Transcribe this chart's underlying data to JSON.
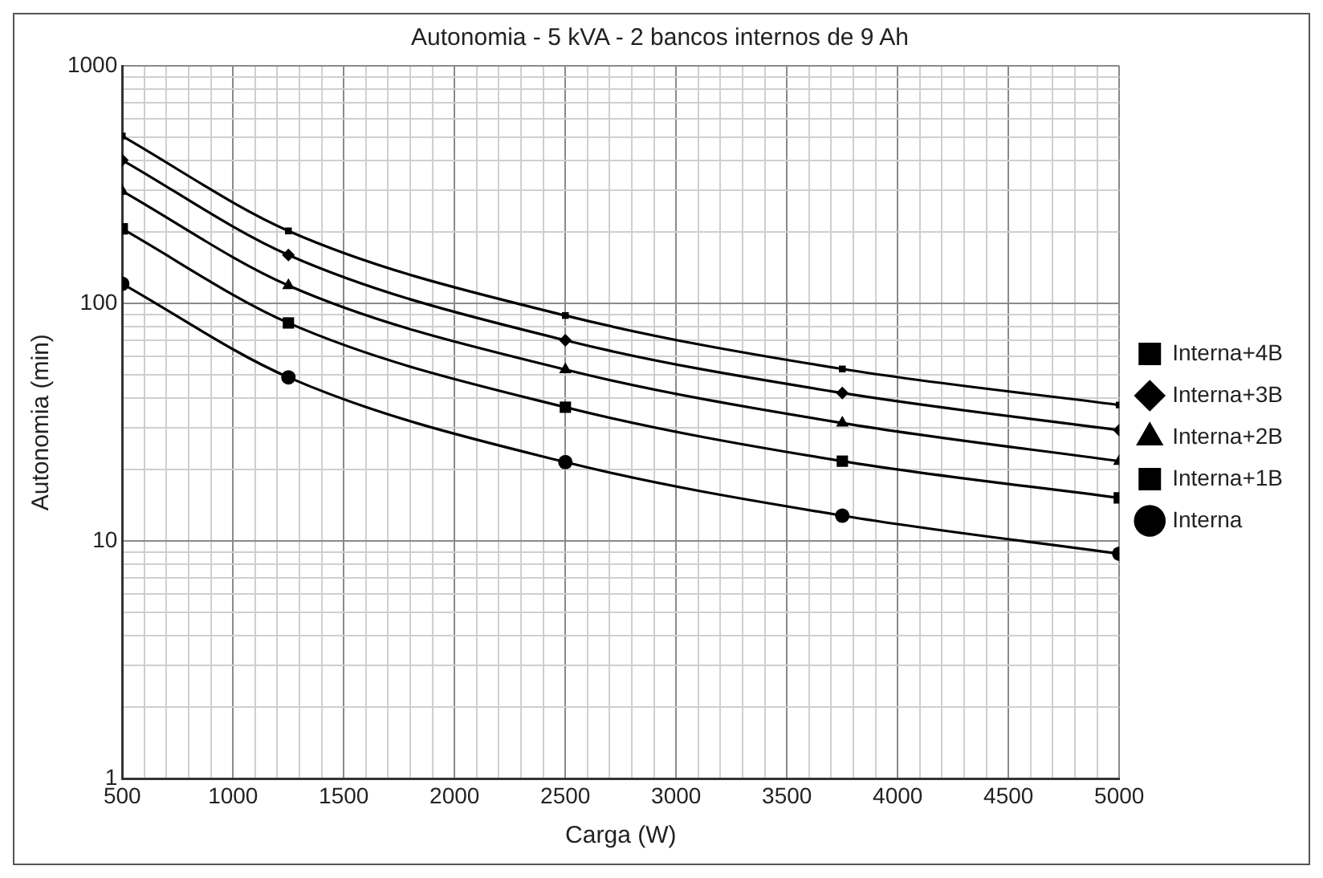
{
  "chart_data": {
    "type": "line",
    "title": "Autonomia - 5 kVA - 2 bancos internos de 9 Ah",
    "xlabel": "Carga (W)",
    "ylabel": "Autonomia (min)",
    "x": [
      500,
      1250,
      2500,
      3750,
      5000
    ],
    "series": [
      {
        "name": "Interna+4B",
        "color": "#000000",
        "marker": "square",
        "values": [
          506,
          202,
          89,
          53,
          37.4
        ]
      },
      {
        "name": "Interna+3B",
        "color": "#000000",
        "marker": "diamond",
        "values": [
          401,
          160,
          70,
          42,
          29.3
        ]
      },
      {
        "name": "Interna+2B",
        "color": "#000000",
        "marker": "triangle",
        "values": [
          297,
          119,
          52.7,
          31.4,
          21.7
        ]
      },
      {
        "name": "Interna+1B",
        "color": "#000000",
        "marker": "square",
        "values": [
          206,
          82.8,
          36.6,
          21.7,
          15.2
        ]
      },
      {
        "name": "Interna",
        "color": "#000000",
        "marker": "circle",
        "values": [
          121,
          48.9,
          21.5,
          12.8,
          8.85
        ]
      }
    ],
    "log": "y",
    "grid": true,
    "legend": "right",
    "line_style": "solid",
    "xlim": [
      500,
      5000
    ],
    "xticks": [
      500,
      {
        "value": 600,
        "label": null
      },
      {
        "value": 700,
        "label": null
      },
      {
        "value": 800,
        "label": null
      },
      {
        "value": 900,
        "label": null
      },
      1000,
      {
        "value": 1100,
        "label": null
      },
      {
        "value": 1200,
        "label": null
      },
      {
        "value": 1300,
        "label": null
      },
      {
        "value": 1400,
        "label": null
      },
      1500,
      {
        "value": 1600,
        "label": null
      },
      {
        "value": 1700,
        "label": null
      },
      {
        "value": 1800,
        "label": null
      },
      {
        "value": 1900,
        "label": null
      },
      2000,
      {
        "value": 2100,
        "label": null
      },
      {
        "value": 2200,
        "label": null
      },
      {
        "value": 2300,
        "label": null
      },
      {
        "value": 2400,
        "label": null
      },
      2500,
      {
        "value": 2600,
        "label": null
      },
      {
        "value": 2700,
        "label": null
      },
      {
        "value": 2800,
        "label": null
      },
      {
        "value": 2900,
        "label": null
      },
      3000,
      {
        "value": 3100,
        "label": null
      },
      {
        "value": 3200,
        "label": null
      },
      {
        "value": 3300,
        "label": null
      },
      {
        "value": 3400,
        "label": null
      },
      3500,
      {
        "value": 3600,
        "label": null
      },
      {
        "value": 3700,
        "label": null
      },
      {
        "value": 3800,
        "label": null
      },
      {
        "value": 3900,
        "label": null
      },
      4000,
      {
        "value": 4100,
        "label": null
      },
      {
        "value": 4200,
        "label": null
      },
      {
        "value": 4300,
        "label": null
      },
      {
        "value": 4400,
        "label": null
      },
      4500,
      {
        "value": 4600,
        "label": null
      },
      {
        "value": 4700,
        "label": null
      },
      {
        "value": 4800,
        "label": null
      },
      {
        "value": 4900,
        "label": null
      },
      5000
    ],
    "ylim": [
      1,
      1000
    ],
    "yticks": [
      1,
      {
        "value": 2,
        "label": null
      },
      {
        "value": 3,
        "label": null
      },
      {
        "value": 4,
        "label": null
      },
      {
        "value": 5,
        "label": null
      },
      {
        "value": 6,
        "label": null
      },
      {
        "value": 7,
        "label": null
      },
      {
        "value": 8,
        "label": null
      },
      {
        "value": 9,
        "label": null
      },
      10,
      {
        "value": 20,
        "label": null
      },
      {
        "value": 30,
        "label": null
      },
      {
        "value": 40,
        "label": null
      },
      {
        "value": 50,
        "label": null
      },
      {
        "value": 60,
        "label": null
      },
      {
        "value": 70,
        "label": null
      },
      {
        "value": 80,
        "label": null
      },
      {
        "value": 90,
        "label": null
      },
      100,
      {
        "value": 200,
        "label": null
      },
      {
        "value": 300,
        "label": null
      },
      {
        "value": 400,
        "label": null
      },
      {
        "value": 500,
        "label": null
      },
      {
        "value": 600,
        "label": null
      },
      {
        "value": 700,
        "label": null
      },
      {
        "value": 800,
        "label": null
      },
      {
        "value": 900,
        "label": null
      },
      1000
    ]
  }
}
